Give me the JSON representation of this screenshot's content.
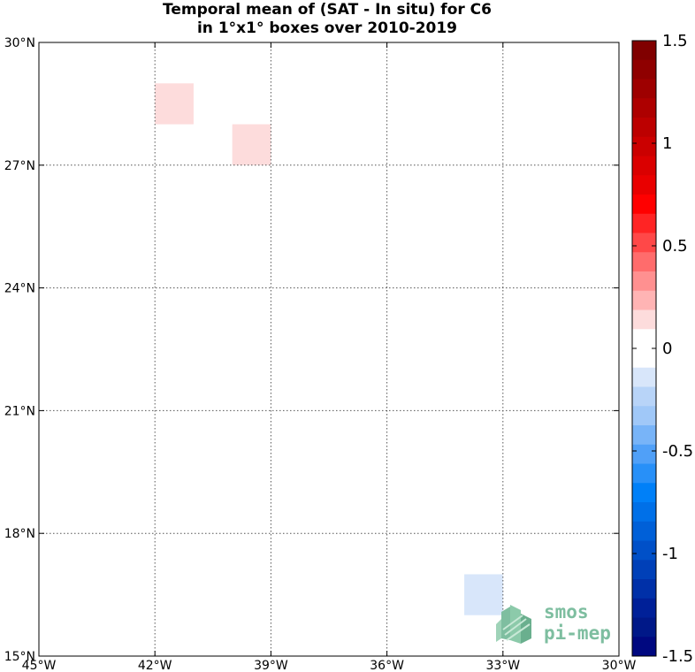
{
  "title": {
    "line1": "Temporal mean of (SAT - In situ) for C6",
    "line2": "in 1°x1° boxes over 2010-2019"
  },
  "map": {
    "lon_range": [
      -45,
      -30
    ],
    "lat_range": [
      15,
      30
    ],
    "grid": true,
    "lon_ticks": [
      {
        "value": -45,
        "label": "45°W"
      },
      {
        "value": -42,
        "label": "42°W"
      },
      {
        "value": -39,
        "label": "39°W"
      },
      {
        "value": -36,
        "label": "36°W"
      },
      {
        "value": -33,
        "label": "33°W"
      },
      {
        "value": -30,
        "label": "30°W"
      }
    ],
    "lat_ticks": [
      {
        "value": 15,
        "label": "15°N"
      },
      {
        "value": 18,
        "label": "18°N"
      },
      {
        "value": 21,
        "label": "21°N"
      },
      {
        "value": 24,
        "label": "24°N"
      },
      {
        "value": 27,
        "label": "27°N"
      },
      {
        "value": 30,
        "label": "30°N"
      }
    ],
    "boxes": [
      {
        "lon": -42,
        "lat": 28,
        "value": 0.15,
        "color": "#fddcdc"
      },
      {
        "lon": -40,
        "lat": 27,
        "value": 0.15,
        "color": "#fddcdc"
      },
      {
        "lon": -34,
        "lat": 16,
        "value": -0.15,
        "color": "#d8e6fa"
      }
    ]
  },
  "colorbar": {
    "range": [
      -1.5,
      1.5
    ],
    "tick_labels": [
      "1.5",
      "1",
      "0.5",
      "0",
      "-0.5",
      "-1",
      "-1.5"
    ],
    "tick_values": [
      1.5,
      1,
      0.5,
      0,
      -0.5,
      -1,
      -1.5
    ],
    "colors_top_to_bottom": [
      "#800000",
      "#8f0000",
      "#9e0000",
      "#ad0000",
      "#bc0000",
      "#cb0000",
      "#da0000",
      "#e90000",
      "#ff0000",
      "#ff2424",
      "#ff4848",
      "#ff6c6c",
      "#ff9090",
      "#ffb4b4",
      "#fddcdc",
      "#ffffff",
      "#ffffff",
      "#d8e6fa",
      "#b8d4f8",
      "#a0c8f8",
      "#78b4f8",
      "#50a0f8",
      "#2890f8",
      "#0080f8",
      "#0070e8",
      "#0060d8",
      "#0050c8",
      "#0040b8",
      "#0030a8",
      "#002098",
      "#001888",
      "#000880"
    ]
  },
  "logo": {
    "line1": "smos",
    "line2": "pi-mep"
  }
}
